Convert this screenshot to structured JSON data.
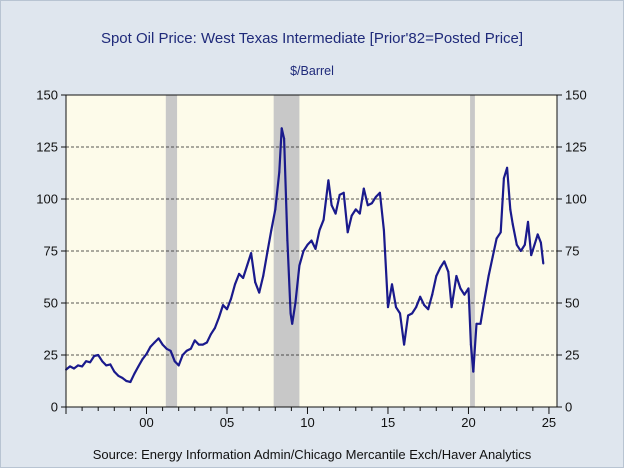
{
  "header": {
    "title": "Spot Oil Price: West Texas Intermediate [Prior'82=Posted Price]",
    "units": "$/Barrel"
  },
  "footer": {
    "source": "Source:  Energy Information Admin/Chicago Mercantile Exch/Haver Analytics"
  },
  "colors": {
    "line": "#1a1a8c",
    "plot_background": "#fdfbea",
    "recession": "#c8c8c8",
    "page_background": "#dfe6ee"
  },
  "chart_data": {
    "type": "line",
    "title": "Spot Oil Price: West Texas Intermediate [Prior'82=Posted Price]",
    "ylabel": "$/Barrel",
    "xlim": [
      1995,
      2025.5
    ],
    "ylim": [
      0,
      150
    ],
    "yticks": [
      0,
      25,
      50,
      75,
      100,
      125,
      150
    ],
    "xticks": [
      {
        "x": 2000,
        "label": "00"
      },
      {
        "x": 2005,
        "label": "05"
      },
      {
        "x": 2010,
        "label": "10"
      },
      {
        "x": 2015,
        "label": "15"
      },
      {
        "x": 2020,
        "label": "20"
      },
      {
        "x": 2025,
        "label": "25"
      }
    ],
    "dual_y_axis": true,
    "grid": "horizontal dashed at y ticks",
    "recessions": [
      [
        2001.2,
        2001.9
      ],
      [
        2007.9,
        2009.5
      ],
      [
        2020.1,
        2020.4
      ]
    ],
    "series": [
      {
        "points": [
          [
            1995.0,
            18.0
          ],
          [
            1995.25,
            19.5
          ],
          [
            1995.5,
            18.5
          ],
          [
            1995.75,
            20.0
          ],
          [
            1996.0,
            19.5
          ],
          [
            1996.25,
            22.0
          ],
          [
            1996.5,
            21.5
          ],
          [
            1996.75,
            24.5
          ],
          [
            1997.0,
            25.0
          ],
          [
            1997.25,
            22.0
          ],
          [
            1997.5,
            20.0
          ],
          [
            1997.75,
            20.5
          ],
          [
            1998.0,
            17.0
          ],
          [
            1998.25,
            15.0
          ],
          [
            1998.5,
            14.0
          ],
          [
            1998.75,
            12.5
          ],
          [
            1999.0,
            12.0
          ],
          [
            1999.25,
            16.0
          ],
          [
            1999.5,
            19.5
          ],
          [
            1999.75,
            23.0
          ],
          [
            2000.0,
            25.5
          ],
          [
            2000.25,
            29.0
          ],
          [
            2000.5,
            31.0
          ],
          [
            2000.75,
            33.0
          ],
          [
            2001.0,
            30.0
          ],
          [
            2001.25,
            28.0
          ],
          [
            2001.5,
            27.0
          ],
          [
            2001.75,
            22.0
          ],
          [
            2002.0,
            20.0
          ],
          [
            2002.25,
            25.0
          ],
          [
            2002.5,
            27.0
          ],
          [
            2002.75,
            28.0
          ],
          [
            2003.0,
            32.0
          ],
          [
            2003.25,
            30.0
          ],
          [
            2003.5,
            30.0
          ],
          [
            2003.75,
            31.0
          ],
          [
            2004.0,
            35.0
          ],
          [
            2004.25,
            38.0
          ],
          [
            2004.5,
            43.0
          ],
          [
            2004.75,
            49.0
          ],
          [
            2005.0,
            47.0
          ],
          [
            2005.25,
            52.0
          ],
          [
            2005.5,
            59.0
          ],
          [
            2005.75,
            64.0
          ],
          [
            2006.0,
            62.0
          ],
          [
            2006.25,
            68.0
          ],
          [
            2006.5,
            74.0
          ],
          [
            2006.75,
            60.0
          ],
          [
            2007.0,
            55.0
          ],
          [
            2007.25,
            63.0
          ],
          [
            2007.5,
            74.0
          ],
          [
            2007.75,
            85.0
          ],
          [
            2008.0,
            95.0
          ],
          [
            2008.25,
            113.0
          ],
          [
            2008.4,
            134.0
          ],
          [
            2008.55,
            129.0
          ],
          [
            2008.75,
            80.0
          ],
          [
            2008.95,
            45.0
          ],
          [
            2009.05,
            40.0
          ],
          [
            2009.25,
            50.0
          ],
          [
            2009.5,
            68.0
          ],
          [
            2009.75,
            75.0
          ],
          [
            2010.0,
            78.0
          ],
          [
            2010.25,
            80.0
          ],
          [
            2010.5,
            76.0
          ],
          [
            2010.75,
            85.0
          ],
          [
            2011.0,
            90.0
          ],
          [
            2011.3,
            109.0
          ],
          [
            2011.5,
            97.0
          ],
          [
            2011.75,
            93.0
          ],
          [
            2012.0,
            102.0
          ],
          [
            2012.25,
            103.0
          ],
          [
            2012.5,
            84.0
          ],
          [
            2012.75,
            92.0
          ],
          [
            2013.0,
            95.0
          ],
          [
            2013.25,
            93.0
          ],
          [
            2013.5,
            105.0
          ],
          [
            2013.75,
            97.0
          ],
          [
            2014.0,
            98.0
          ],
          [
            2014.25,
            101.0
          ],
          [
            2014.5,
            103.0
          ],
          [
            2014.75,
            85.0
          ],
          [
            2015.0,
            48.0
          ],
          [
            2015.25,
            59.0
          ],
          [
            2015.5,
            48.0
          ],
          [
            2015.75,
            45.0
          ],
          [
            2016.0,
            30.0
          ],
          [
            2016.25,
            44.0
          ],
          [
            2016.5,
            45.0
          ],
          [
            2016.75,
            48.0
          ],
          [
            2017.0,
            53.0
          ],
          [
            2017.25,
            49.0
          ],
          [
            2017.5,
            47.0
          ],
          [
            2017.75,
            54.0
          ],
          [
            2018.0,
            63.0
          ],
          [
            2018.25,
            67.0
          ],
          [
            2018.5,
            70.0
          ],
          [
            2018.75,
            65.0
          ],
          [
            2018.95,
            48.0
          ],
          [
            2019.25,
            63.0
          ],
          [
            2019.5,
            57.0
          ],
          [
            2019.75,
            54.0
          ],
          [
            2020.0,
            57.0
          ],
          [
            2020.15,
            30.0
          ],
          [
            2020.3,
            17.0
          ],
          [
            2020.5,
            40.0
          ],
          [
            2020.75,
            40.0
          ],
          [
            2021.0,
            52.0
          ],
          [
            2021.25,
            63.0
          ],
          [
            2021.5,
            72.0
          ],
          [
            2021.75,
            81.0
          ],
          [
            2022.0,
            84.0
          ],
          [
            2022.2,
            110.0
          ],
          [
            2022.4,
            115.0
          ],
          [
            2022.6,
            95.0
          ],
          [
            2022.75,
            88.0
          ],
          [
            2023.0,
            78.0
          ],
          [
            2023.25,
            75.0
          ],
          [
            2023.5,
            78.0
          ],
          [
            2023.7,
            89.0
          ],
          [
            2023.9,
            73.0
          ],
          [
            2024.1,
            78.0
          ],
          [
            2024.3,
            83.0
          ],
          [
            2024.5,
            79.0
          ],
          [
            2024.65,
            69.0
          ]
        ]
      }
    ]
  }
}
